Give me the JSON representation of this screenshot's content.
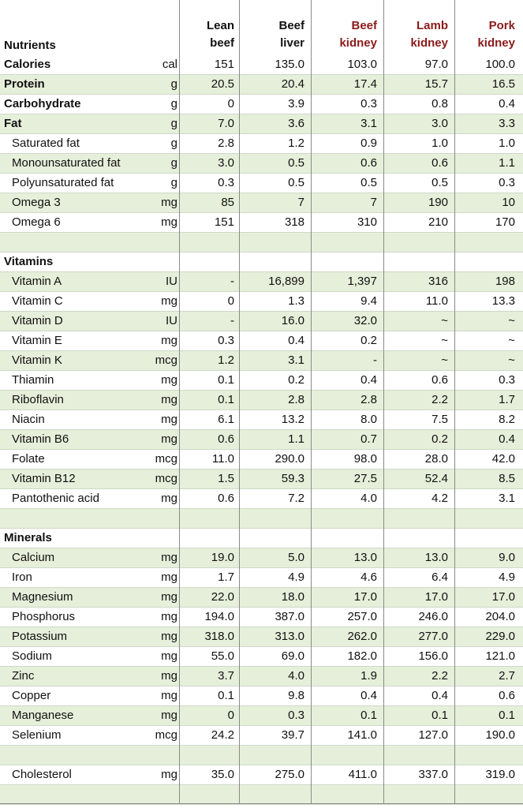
{
  "header": {
    "nutrients": "Nutrients",
    "cols": [
      {
        "l1": "Lean",
        "l2": "beef",
        "red": false
      },
      {
        "l1": "Beef",
        "l2": "liver",
        "red": false
      },
      {
        "l1": "Beef",
        "l2": "kidney",
        "red": true
      },
      {
        "l1": "Lamb",
        "l2": "kidney",
        "red": true
      },
      {
        "l1": "Pork",
        "l2": "kidney",
        "red": true
      }
    ]
  },
  "rows": [
    {
      "name": "Calories",
      "unit": "cal",
      "vals": [
        "151",
        "135.0",
        "103.0",
        "97.0",
        "100.0"
      ],
      "bold": true
    },
    {
      "name": "Protein",
      "unit": "g",
      "vals": [
        "20.5",
        "20.4",
        "17.4",
        "15.7",
        "16.5"
      ],
      "bold": true
    },
    {
      "name": "Carbohydrate",
      "unit": "g",
      "vals": [
        "0",
        "3.9",
        "0.3",
        "0.8",
        "0.4"
      ],
      "bold": true
    },
    {
      "name": "Fat",
      "unit": "g",
      "vals": [
        "7.0",
        "3.6",
        "3.1",
        "3.0",
        "3.3"
      ],
      "bold": true
    },
    {
      "name": "Saturated fat",
      "unit": "g",
      "vals": [
        "2.8",
        "1.2",
        "0.9",
        "1.0",
        "1.0"
      ],
      "indent": true
    },
    {
      "name": "Monounsaturated fat",
      "unit": "g",
      "vals": [
        "3.0",
        "0.5",
        "0.6",
        "0.6",
        "1.1"
      ],
      "indent": true
    },
    {
      "name": "Polyunsaturated fat",
      "unit": "g",
      "vals": [
        "0.3",
        "0.5",
        "0.5",
        "0.5",
        "0.3"
      ],
      "indent": true
    },
    {
      "name": "Omega 3",
      "unit": "mg",
      "vals": [
        "85",
        "7",
        "7",
        "190",
        "10"
      ],
      "indent": true
    },
    {
      "name": "Omega 6",
      "unit": "mg",
      "vals": [
        "151",
        "318",
        "310",
        "210",
        "170"
      ],
      "indent": true
    },
    {
      "name": "",
      "unit": "",
      "vals": [
        "",
        "",
        "",
        "",
        ""
      ]
    },
    {
      "name": "Vitamins",
      "unit": "",
      "vals": [
        "",
        "",
        "",
        "",
        ""
      ],
      "bold": true
    },
    {
      "name": "Vitamin A",
      "unit": "IU",
      "vals": [
        "-",
        "16,899",
        "1,397",
        "316",
        "198"
      ],
      "indent": true
    },
    {
      "name": "Vitamin C",
      "unit": "mg",
      "vals": [
        "0",
        "1.3",
        "9.4",
        "11.0",
        "13.3"
      ],
      "indent": true
    },
    {
      "name": "Vitamin D",
      "unit": "IU",
      "vals": [
        "-",
        "16.0",
        "32.0",
        "~",
        "~"
      ],
      "indent": true
    },
    {
      "name": "Vitamin E",
      "unit": "mg",
      "vals": [
        "0.3",
        "0.4",
        "0.2",
        "~",
        "~"
      ],
      "indent": true
    },
    {
      "name": "Vitamin K",
      "unit": "mcg",
      "vals": [
        "1.2",
        "3.1",
        "-",
        "~",
        "~"
      ],
      "indent": true
    },
    {
      "name": "Thiamin",
      "unit": "mg",
      "vals": [
        "0.1",
        "0.2",
        "0.4",
        "0.6",
        "0.3"
      ],
      "indent": true
    },
    {
      "name": "Riboflavin",
      "unit": "mg",
      "vals": [
        "0.1",
        "2.8",
        "2.8",
        "2.2",
        "1.7"
      ],
      "indent": true
    },
    {
      "name": "Niacin",
      "unit": "mg",
      "vals": [
        "6.1",
        "13.2",
        "8.0",
        "7.5",
        "8.2"
      ],
      "indent": true
    },
    {
      "name": "Vitamin B6",
      "unit": "mg",
      "vals": [
        "0.6",
        "1.1",
        "0.7",
        "0.2",
        "0.4"
      ],
      "indent": true
    },
    {
      "name": "Folate",
      "unit": "mcg",
      "vals": [
        "11.0",
        "290.0",
        "98.0",
        "28.0",
        "42.0"
      ],
      "indent": true
    },
    {
      "name": "Vitamin B12",
      "unit": "mcg",
      "vals": [
        "1.5",
        "59.3",
        "27.5",
        "52.4",
        "8.5"
      ],
      "indent": true
    },
    {
      "name": "Pantothenic acid",
      "unit": "mg",
      "vals": [
        "0.6",
        "7.2",
        "4.0",
        "4.2",
        "3.1"
      ],
      "indent": true
    },
    {
      "name": "",
      "unit": "",
      "vals": [
        "",
        "",
        "",
        "",
        ""
      ]
    },
    {
      "name": "Minerals",
      "unit": "",
      "vals": [
        "",
        "",
        "",
        "",
        ""
      ],
      "bold": true
    },
    {
      "name": "Calcium",
      "unit": "mg",
      "vals": [
        "19.0",
        "5.0",
        "13.0",
        "13.0",
        "9.0"
      ],
      "indent": true
    },
    {
      "name": "Iron",
      "unit": "mg",
      "vals": [
        "1.7",
        "4.9",
        "4.6",
        "6.4",
        "4.9"
      ],
      "indent": true
    },
    {
      "name": "Magnesium",
      "unit": "mg",
      "vals": [
        "22.0",
        "18.0",
        "17.0",
        "17.0",
        "17.0"
      ],
      "indent": true
    },
    {
      "name": "Phosphorus",
      "unit": "mg",
      "vals": [
        "194.0",
        "387.0",
        "257.0",
        "246.0",
        "204.0"
      ],
      "indent": true
    },
    {
      "name": "Potassium",
      "unit": "mg",
      "vals": [
        "318.0",
        "313.0",
        "262.0",
        "277.0",
        "229.0"
      ],
      "indent": true
    },
    {
      "name": "Sodium",
      "unit": "mg",
      "vals": [
        "55.0",
        "69.0",
        "182.0",
        "156.0",
        "121.0"
      ],
      "indent": true
    },
    {
      "name": "Zinc",
      "unit": "mg",
      "vals": [
        "3.7",
        "4.0",
        "1.9",
        "2.2",
        "2.7"
      ],
      "indent": true
    },
    {
      "name": "Copper",
      "unit": "mg",
      "vals": [
        "0.1",
        "9.8",
        "0.4",
        "0.4",
        "0.6"
      ],
      "indent": true
    },
    {
      "name": "Manganese",
      "unit": "mg",
      "vals": [
        "0",
        "0.3",
        "0.1",
        "0.1",
        "0.1"
      ],
      "indent": true
    },
    {
      "name": "Selenium",
      "unit": "mcg",
      "vals": [
        "24.2",
        "39.7",
        "141.0",
        "127.0",
        "190.0"
      ],
      "indent": true
    },
    {
      "name": "",
      "unit": "",
      "vals": [
        "",
        "",
        "",
        "",
        ""
      ]
    },
    {
      "name": "Cholesterol",
      "unit": "mg",
      "vals": [
        "35.0",
        "275.0",
        "411.0",
        "337.0",
        "319.0"
      ],
      "indent": true
    },
    {
      "name": "",
      "unit": "",
      "vals": [
        "",
        "",
        "",
        "",
        ""
      ]
    }
  ],
  "colors": {
    "band": "#e6efda",
    "header_red": "#8b1a1a",
    "grid": "#8a8a8a"
  }
}
